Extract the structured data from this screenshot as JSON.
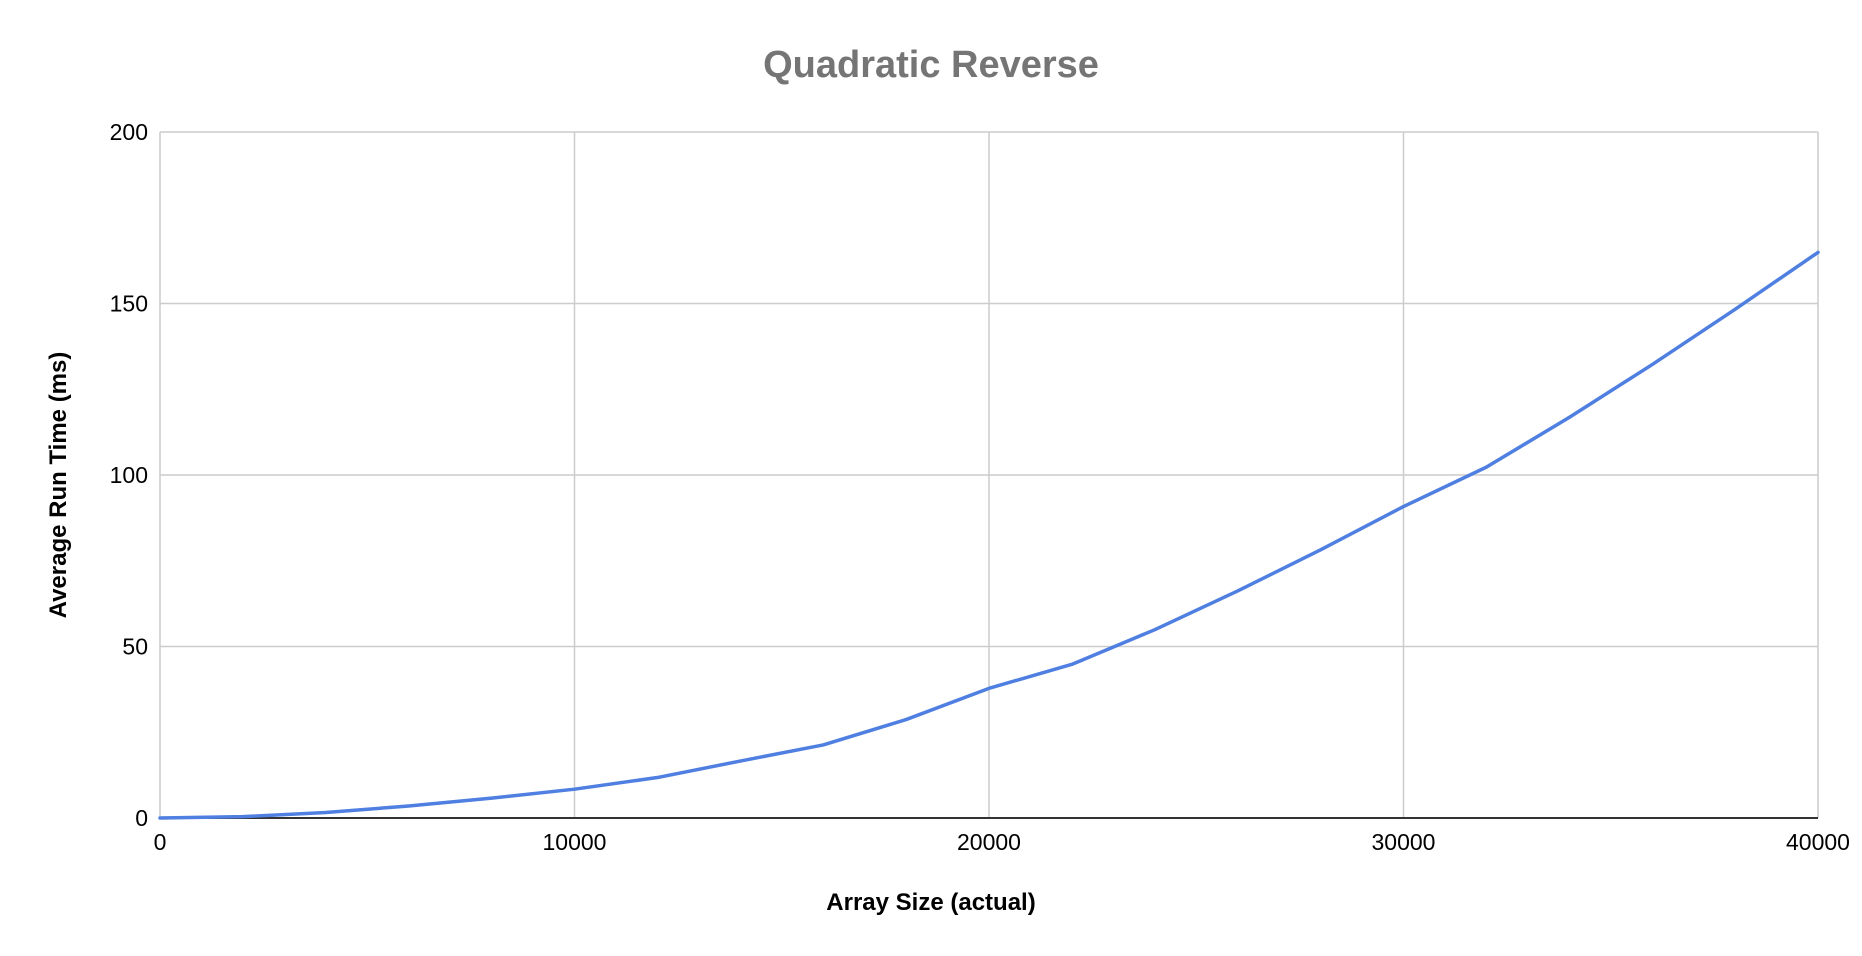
{
  "chart_data": {
    "type": "line",
    "title": "Quadratic Reverse",
    "xlabel": "Array Size (actual)",
    "ylabel": "Average Run Time (ms)",
    "xlim": [
      0,
      40000
    ],
    "ylim": [
      0,
      200
    ],
    "x_ticks": [
      "0",
      "10000",
      "20000",
      "30000",
      "40000"
    ],
    "y_ticks": [
      "0",
      "50",
      "100",
      "150",
      "200"
    ],
    "x_tick_values": [
      0,
      10000,
      20000,
      30000,
      40000
    ],
    "y_tick_values": [
      0,
      50,
      100,
      150,
      200
    ],
    "grid": true,
    "legend": "none",
    "series": [
      {
        "color": "#4f7fe0",
        "x": [
          0,
          2000,
          4000,
          6000,
          8000,
          10000,
          12000,
          14000,
          16000,
          18000,
          20000,
          22000,
          24000,
          26000,
          28000,
          30000,
          32000,
          34000,
          36000,
          38000,
          40000
        ],
        "values": [
          0,
          0.4,
          1.6,
          3.5,
          5.8,
          8.4,
          11.8,
          16.6,
          21.3,
          28.7,
          37.8,
          44.8,
          54.9,
          66.2,
          78.2,
          90.8,
          102.3,
          116.8,
          132.2,
          148.3,
          164.9
        ]
      }
    ],
    "colors": {
      "title": "#757575",
      "grid": "#cccccc",
      "axis": "#333333",
      "text": "#000000"
    }
  }
}
